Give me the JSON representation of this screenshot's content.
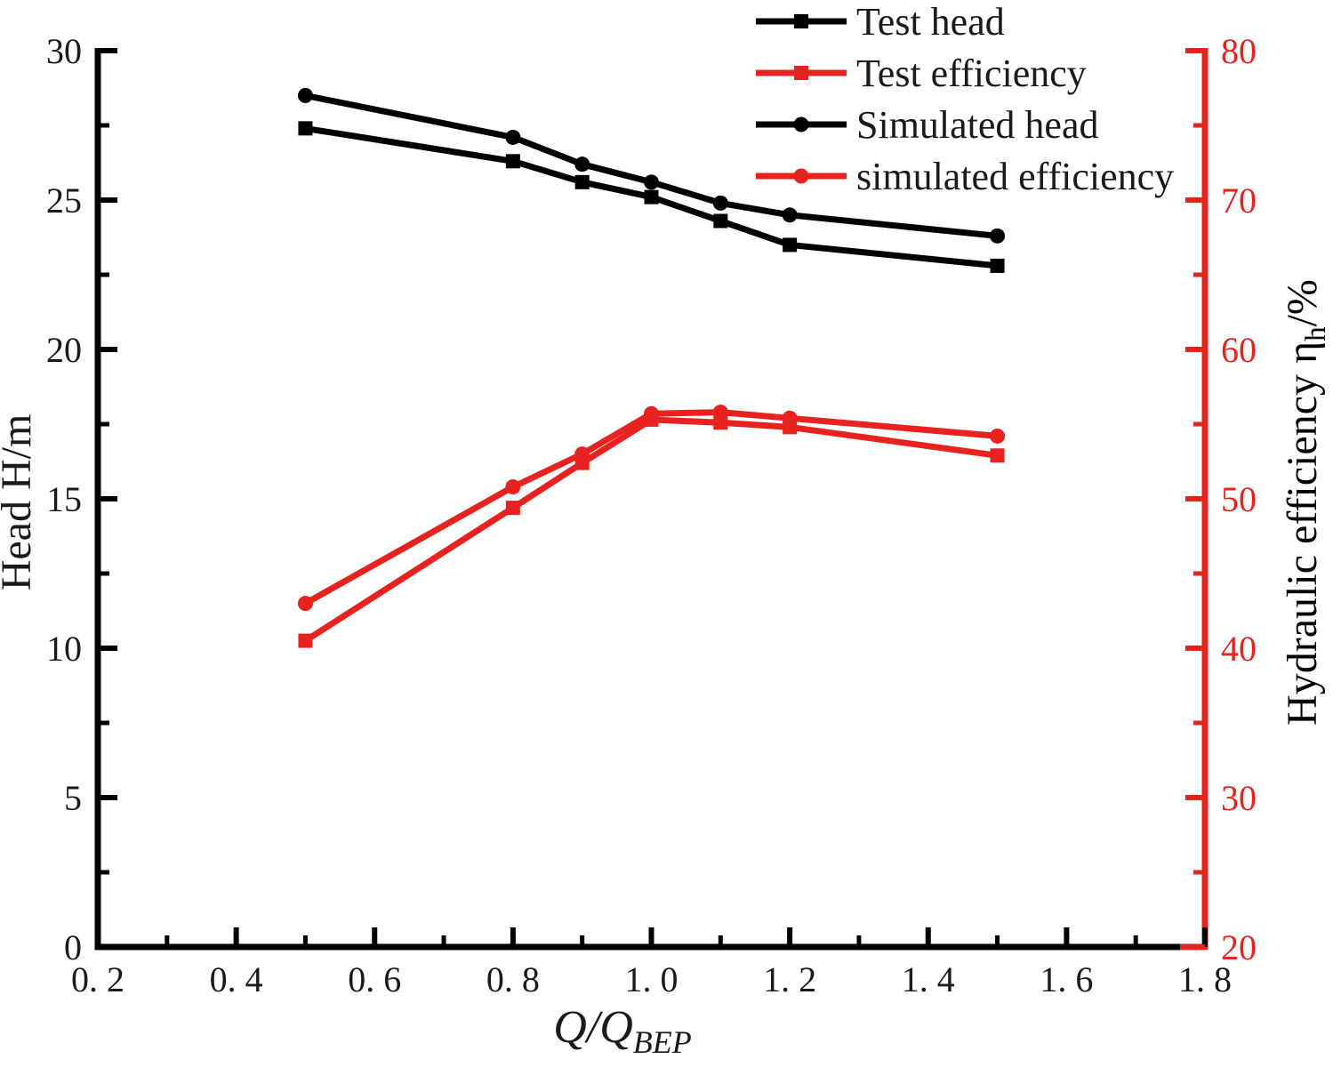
{
  "chart_data": {
    "type": "line",
    "title": "",
    "background": "#ffffff",
    "colors": {
      "black_series": "#000000",
      "red_series": "#e8231f"
    },
    "x_axis": {
      "label_main": "Q/Q",
      "label_sub": "BEP",
      "range": [
        0.2,
        1.8
      ],
      "major_ticks": [
        0.2,
        0.4,
        0.6,
        0.8,
        1.0,
        1.2,
        1.4,
        1.6,
        1.8
      ],
      "tick_labels": [
        "0. 2",
        "0. 4",
        "0. 6",
        "0. 8",
        "1. 0",
        "1. 2",
        "1. 4",
        "1. 6",
        "1. 8"
      ],
      "minor_ticks": [
        0.3,
        0.5,
        0.7,
        0.9,
        1.1,
        1.3,
        1.5,
        1.7
      ]
    },
    "y_left_axis": {
      "label": "Head H/m",
      "range": [
        0,
        30
      ],
      "major_ticks": [
        0,
        5,
        10,
        15,
        20,
        25,
        30
      ],
      "tick_labels": [
        "0",
        "5",
        "10",
        "15",
        "20",
        "25",
        "30"
      ],
      "minor_ticks": [
        2.5,
        7.5,
        12.5,
        17.5,
        22.5,
        27.5
      ],
      "color": "#000000"
    },
    "y_right_axis": {
      "label_main": "Hydraulic efficiency η",
      "label_sub": "h",
      "label_suffix": "/%",
      "range": [
        20,
        80
      ],
      "major_ticks": [
        20,
        30,
        40,
        50,
        60,
        70,
        80
      ],
      "tick_labels": [
        "20",
        "30",
        "40",
        "50",
        "60",
        "70",
        "80"
      ],
      "minor_ticks": [
        25,
        35,
        45,
        55,
        65,
        75
      ],
      "color": "#e8231f",
      "label_color": "#000000"
    },
    "series": [
      {
        "name": "Test head",
        "axis": "left",
        "color": "#000000",
        "marker": "square",
        "x": [
          0.5,
          0.8,
          0.9,
          1.0,
          1.1,
          1.2,
          1.5
        ],
        "y": [
          27.4,
          26.3,
          25.6,
          25.1,
          24.3,
          23.5,
          22.8
        ]
      },
      {
        "name": "Test efficiency",
        "axis": "right",
        "color": "#e8231f",
        "marker": "square",
        "x": [
          0.5,
          0.8,
          0.9,
          1.0,
          1.1,
          1.2,
          1.5
        ],
        "y": [
          40.5,
          49.4,
          52.4,
          55.3,
          55.1,
          54.8,
          52.9
        ]
      },
      {
        "name": "Simulated head",
        "axis": "left",
        "color": "#000000",
        "marker": "circle",
        "x": [
          0.5,
          0.8,
          0.9,
          1.0,
          1.1,
          1.2,
          1.5
        ],
        "y": [
          28.5,
          27.1,
          26.2,
          25.6,
          24.9,
          24.5,
          23.8
        ]
      },
      {
        "name": "simulated efficiency",
        "axis": "right",
        "color": "#e8231f",
        "marker": "circle",
        "x": [
          0.5,
          0.8,
          0.9,
          1.0,
          1.1,
          1.2,
          1.5
        ],
        "y": [
          43.0,
          50.8,
          53.0,
          55.7,
          55.8,
          55.4,
          54.2
        ]
      }
    ],
    "legend": {
      "position": "top",
      "items": [
        {
          "label": "Test head",
          "color": "#000000",
          "marker": "square"
        },
        {
          "label": "Test efficiency",
          "color": "#e8231f",
          "marker": "square"
        },
        {
          "label": "Simulated head",
          "color": "#000000",
          "marker": "circle"
        },
        {
          "label": "simulated efficiency",
          "color": "#e8231f",
          "marker": "circle"
        }
      ]
    },
    "grid": false
  }
}
